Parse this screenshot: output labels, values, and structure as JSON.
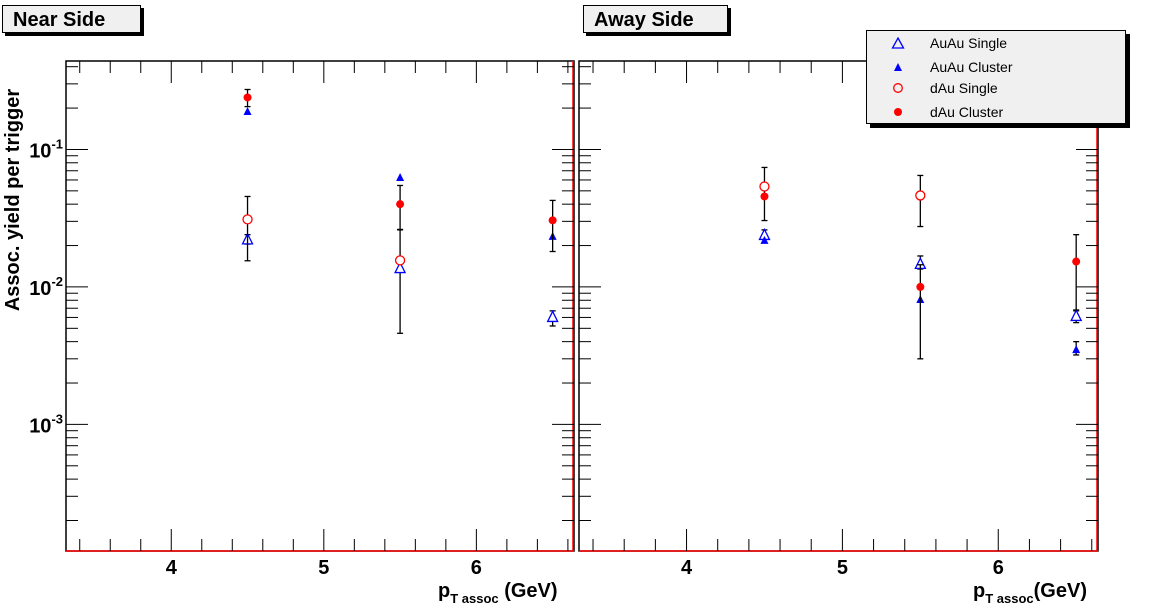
{
  "chart_data": [
    {
      "type": "scatter",
      "title": "Near Side",
      "xlabel_main": "p",
      "xlabel_sub": "T assoc",
      "xlabel_unit": "(GeV)",
      "ylabel": "Assoc. yield per trigger",
      "xlim": [
        3.31,
        6.64
      ],
      "ylim": [
        0.00012,
        0.44
      ],
      "yscale": "log",
      "xticks": [
        "4",
        "5",
        "6"
      ],
      "yticks": [
        {
          "base": "10",
          "exp": "-1"
        },
        {
          "base": "10",
          "exp": "-2"
        },
        {
          "base": "10",
          "exp": "-3"
        }
      ],
      "series": [
        {
          "name": "AuAu Single",
          "marker": "open-triangle",
          "color": "#0000ff",
          "points": [
            {
              "x": 4.5,
              "y": 0.022,
              "err": [
                0.0205,
                0.024
              ]
            },
            {
              "x": 5.5,
              "y": 0.0136,
              "err": [
                0.0046,
                0.026
              ]
            },
            {
              "x": 6.5,
              "y": 0.006,
              "err": [
                0.0052,
                0.0067
              ]
            }
          ]
        },
        {
          "name": "AuAu Cluster",
          "marker": "filled-triangle",
          "color": "#0000ff",
          "points": [
            {
              "x": 4.5,
              "y": 0.189
            },
            {
              "x": 5.5,
              "y": 0.0625
            },
            {
              "x": 6.5,
              "y": 0.0233
            }
          ]
        },
        {
          "name": "dAu Single",
          "marker": "open-circle",
          "color": "#ff0000",
          "points": [
            {
              "x": 4.5,
              "y": 0.031,
              "err": [
                0.0155,
                0.0455
              ]
            },
            {
              "x": 5.5,
              "y": 0.0156
            }
          ]
        },
        {
          "name": "dAu Cluster",
          "marker": "filled-circle",
          "color": "#ff0000",
          "points": [
            {
              "x": 4.5,
              "y": 0.239,
              "err": [
                0.205,
                0.273
              ]
            },
            {
              "x": 5.5,
              "y": 0.04,
              "err": [
                0.0262,
                0.0547
              ]
            },
            {
              "x": 6.5,
              "y": 0.0305,
              "err": [
                0.0181,
                0.0426
              ]
            }
          ]
        }
      ]
    },
    {
      "type": "scatter",
      "title": "Away Side",
      "xlabel_main": "p",
      "xlabel_sub": "T assoc",
      "xlabel_unit": "(GeV)",
      "xlim": [
        3.31,
        6.64
      ],
      "ylim": [
        0.00012,
        0.44
      ],
      "yscale": "log",
      "xticks": [
        "4",
        "5",
        "6"
      ],
      "series": [
        {
          "name": "AuAu Single",
          "marker": "open-triangle",
          "color": "#0000ff",
          "points": [
            {
              "x": 4.5,
              "y": 0.0237,
              "err": [
                0.021,
                0.026
              ]
            },
            {
              "x": 5.5,
              "y": 0.0146,
              "err": [
                0.0135,
                0.0168
              ]
            },
            {
              "x": 6.5,
              "y": 0.0061,
              "err": [
                0.0055,
                0.0067
              ]
            }
          ]
        },
        {
          "name": "AuAu Cluster",
          "marker": "filled-triangle",
          "color": "#0000ff",
          "points": [
            {
              "x": 4.5,
              "y": 0.0218
            },
            {
              "x": 5.5,
              "y": 0.0081
            },
            {
              "x": 6.5,
              "y": 0.0035,
              "err": [
                0.0032,
                0.004
              ]
            }
          ]
        },
        {
          "name": "dAu Single",
          "marker": "open-circle",
          "color": "#ff0000",
          "points": [
            {
              "x": 4.5,
              "y": 0.0538,
              "err": [
                0.0304,
                0.074
              ]
            },
            {
              "x": 5.5,
              "y": 0.0463,
              "err": [
                0.0275,
                0.0647
              ]
            }
          ]
        },
        {
          "name": "dAu Cluster",
          "marker": "filled-circle",
          "color": "#ff0000",
          "points": [
            {
              "x": 4.5,
              "y": 0.0455
            },
            {
              "x": 5.5,
              "y": 0.01,
              "err": [
                0.003,
                0.0145
              ]
            },
            {
              "x": 6.5,
              "y": 0.0153,
              "err": [
                0.0068,
                0.024
              ]
            }
          ]
        }
      ]
    }
  ],
  "legend": {
    "placement": "top-right",
    "items": [
      "AuAu Single",
      "AuAu Cluster",
      "dAu Single",
      "dAu Cluster"
    ]
  }
}
